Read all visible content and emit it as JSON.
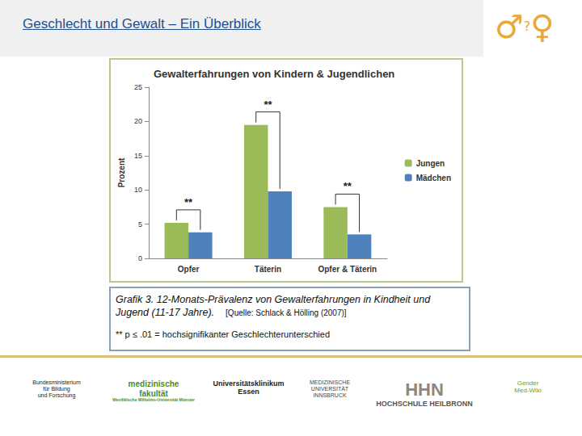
{
  "header": {
    "title": "Geschlecht und Gewalt – Ein Überblick",
    "symbols": [
      "♂",
      "?",
      "♀"
    ]
  },
  "chart_data": {
    "type": "bar",
    "title": "Gewalterfahrungen von Kindern & Jugendlichen",
    "categories": [
      "Opfer",
      "Täterin",
      "Opfer & Täterin"
    ],
    "series": [
      {
        "name": "Jungen",
        "color": "#9bbb59",
        "values": [
          5.2,
          19.5,
          7.5
        ]
      },
      {
        "name": "Mädchen",
        "color": "#4f81bd",
        "values": [
          3.8,
          9.8,
          3.5
        ]
      }
    ],
    "y_label": "Prozent",
    "ylim": [
      0,
      25
    ],
    "yticks": [
      0,
      5,
      10,
      15,
      20,
      25
    ],
    "grid": false,
    "legend": "right",
    "annotations": [
      {
        "category": "Opfer",
        "text": "**"
      },
      {
        "category": "Täterin",
        "text": "**"
      },
      {
        "category": "Opfer & Täterin",
        "text": "**"
      }
    ]
  },
  "caption": {
    "text": "Grafik 3. 12-Monats-Prävalenz von Gewalterfahrungen in Kindheit und Jugend (11-17 Jahre).",
    "source": "[Quelle: Schlack & Hölling (2007)]",
    "note": "** p ≤ .01 = hochsignifikanter Geschlechterunterschied"
  },
  "logos": [
    [
      "Bundesministerium",
      "für Bildung",
      "und Forschung"
    ],
    [
      "medizinische",
      "fakultät",
      "Westfälische Wilhelms-Universität Münster"
    ],
    [
      "Universitätsklinikum",
      "Essen"
    ],
    [
      "MEDIZINISCHE",
      "UNIVERSITÄT",
      "INNSBRUCK"
    ],
    [
      "HHN",
      "HOCHSCHULE HEILBRONN"
    ],
    [
      "Gender",
      "Med-Wiki"
    ]
  ]
}
